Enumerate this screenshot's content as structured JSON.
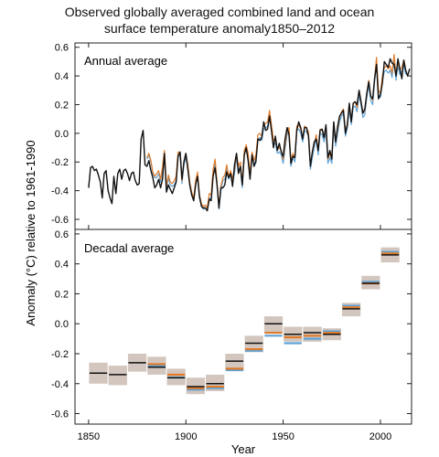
{
  "title_line1": "Observed globally averaged combined land and ocean",
  "title_line2": "surface temperature anomaly1850–2012",
  "colors": {
    "black": "#111111",
    "orange": "#e07b2a",
    "blue": "#5fa3d6",
    "band": "#cbbcb3"
  },
  "chart_data": [
    {
      "type": "line",
      "panel_label": "Annual average",
      "xlabel": "Year",
      "ylabel": "Anomaly (°C) relative to 1961-1990",
      "xlim": [
        1843,
        2016
      ],
      "ylim": [
        -0.67,
        0.63
      ],
      "yticks": [
        -0.6,
        -0.4,
        -0.2,
        0.0,
        0.2,
        0.4,
        0.6
      ],
      "ytick_labels": [
        "-0.6",
        "-0.4",
        "-0.2",
        "0.0",
        "0.2",
        "0.4",
        "0.6"
      ],
      "series": [
        {
          "key": "black",
          "start_year": 1850,
          "values": [
            -0.38,
            -0.24,
            -0.23,
            -0.26,
            -0.25,
            -0.29,
            -0.34,
            -0.45,
            -0.28,
            -0.26,
            -0.4,
            -0.45,
            -0.49,
            -0.3,
            -0.42,
            -0.28,
            -0.25,
            -0.32,
            -0.26,
            -0.25,
            -0.28,
            -0.33,
            -0.28,
            -0.27,
            -0.33,
            -0.36,
            -0.35,
            -0.04,
            0.02,
            -0.22,
            -0.23,
            -0.19,
            -0.26,
            -0.31,
            -0.38,
            -0.36,
            -0.32,
            -0.38,
            -0.32,
            -0.14,
            -0.41,
            -0.36,
            -0.39,
            -0.42,
            -0.38,
            -0.34,
            -0.16,
            -0.13,
            -0.32,
            -0.2,
            -0.14,
            -0.25,
            -0.36,
            -0.43,
            -0.47,
            -0.36,
            -0.3,
            -0.44,
            -0.51,
            -0.52,
            -0.52,
            -0.54,
            -0.46,
            -0.47,
            -0.3,
            -0.24,
            -0.36,
            -0.52,
            -0.38,
            -0.38,
            -0.36,
            -0.27,
            -0.31,
            -0.28,
            -0.37,
            -0.22,
            -0.14,
            -0.28,
            -0.23,
            -0.36,
            -0.15,
            -0.1,
            -0.19,
            -0.32,
            -0.15,
            -0.23,
            -0.2,
            -0.04,
            -0.05,
            -0.03,
            0.08,
            0.02,
            0.03,
            0.12,
            0.02,
            -0.1,
            -0.02,
            -0.12,
            -0.07,
            -0.13,
            -0.16,
            -0.04,
            0.04,
            -0.01,
            -0.21,
            -0.16,
            -0.17,
            0.02,
            0.08,
            0.04,
            -0.04,
            0.04,
            0.04,
            -0.02,
            -0.23,
            -0.13,
            -0.06,
            -0.04,
            -0.12,
            0.02,
            0.03,
            -0.03,
            0.06,
            -0.17,
            -0.12,
            -0.18,
            0.08,
            -0.06,
            0.05,
            0.12,
            0.14,
            0.16,
            0.0,
            0.06,
            0.21,
            0.08,
            0.21,
            0.22,
            0.2,
            0.3,
            0.22,
            0.14,
            0.17,
            0.28,
            0.36,
            0.26,
            0.24,
            0.38,
            0.48,
            0.24,
            0.27,
            0.35,
            0.5,
            0.48,
            0.46,
            0.52,
            0.49,
            0.48,
            0.4,
            0.52,
            0.45,
            0.38,
            0.51,
            0.44,
            0.4,
            0.45
          ]
        },
        {
          "key": "orange",
          "start_year": 1880,
          "values": [
            -0.17,
            -0.14,
            -0.19,
            -0.27,
            -0.3,
            -0.28,
            -0.26,
            -0.32,
            -0.23,
            -0.12,
            -0.37,
            -0.29,
            -0.34,
            -0.35,
            -0.33,
            -0.3,
            -0.13,
            -0.13,
            -0.33,
            -0.2,
            -0.14,
            -0.22,
            -0.34,
            -0.41,
            -0.45,
            -0.33,
            -0.27,
            -0.43,
            -0.49,
            -0.51,
            -0.5,
            -0.52,
            -0.42,
            -0.43,
            -0.25,
            -0.18,
            -0.34,
            -0.51,
            -0.37,
            -0.31,
            -0.29,
            -0.22,
            -0.3,
            -0.26,
            -0.32,
            -0.25,
            -0.14,
            -0.23,
            -0.2,
            -0.35,
            -0.12,
            -0.08,
            -0.14,
            -0.28,
            -0.13,
            -0.19,
            -0.15,
            -0.01,
            0.0,
            -0.02,
            0.06,
            0.07,
            0.08,
            0.16,
            0.06,
            -0.05,
            -0.04,
            -0.11,
            -0.1,
            -0.12,
            -0.18,
            -0.08,
            0.02,
            0.04,
            -0.2,
            -0.14,
            -0.17,
            0.05,
            0.06,
            0.03,
            -0.03,
            0.05,
            0.04,
            0.01,
            -0.22,
            -0.14,
            -0.07,
            -0.01,
            -0.12,
            0.03,
            0.02,
            -0.03,
            0.05,
            -0.18,
            -0.14,
            -0.18,
            0.07,
            -0.06,
            0.03,
            0.11,
            0.15,
            0.17,
            0.01,
            0.07,
            0.2,
            0.09,
            0.21,
            0.22,
            0.18,
            0.3,
            0.23,
            0.14,
            0.16,
            0.28,
            0.37,
            0.26,
            0.23,
            0.39,
            0.53,
            0.3,
            0.28,
            0.4,
            0.46,
            0.47,
            0.45,
            0.47,
            0.42,
            0.55,
            0.4,
            0.5,
            0.44,
            0.46,
            0.51,
            0.44
          ]
        },
        {
          "key": "blue",
          "start_year": 1880,
          "values": [
            -0.18,
            -0.15,
            -0.2,
            -0.28,
            -0.31,
            -0.31,
            -0.28,
            -0.34,
            -0.25,
            -0.14,
            -0.39,
            -0.31,
            -0.36,
            -0.37,
            -0.36,
            -0.33,
            -0.16,
            -0.15,
            -0.35,
            -0.22,
            -0.17,
            -0.24,
            -0.36,
            -0.43,
            -0.47,
            -0.35,
            -0.3,
            -0.45,
            -0.51,
            -0.53,
            -0.52,
            -0.54,
            -0.45,
            -0.46,
            -0.28,
            -0.21,
            -0.36,
            -0.53,
            -0.4,
            -0.33,
            -0.32,
            -0.25,
            -0.32,
            -0.29,
            -0.35,
            -0.28,
            -0.17,
            -0.26,
            -0.23,
            -0.38,
            -0.15,
            -0.11,
            -0.17,
            -0.3,
            -0.15,
            -0.22,
            -0.18,
            -0.04,
            -0.03,
            -0.05,
            0.03,
            0.04,
            0.05,
            0.12,
            0.04,
            -0.08,
            -0.07,
            -0.14,
            -0.13,
            -0.15,
            -0.21,
            -0.11,
            -0.01,
            0.01,
            -0.23,
            -0.17,
            -0.2,
            0.02,
            0.03,
            0.0,
            -0.06,
            0.02,
            0.01,
            -0.02,
            -0.25,
            -0.17,
            -0.1,
            -0.04,
            -0.15,
            0.0,
            -0.01,
            -0.06,
            0.02,
            -0.21,
            -0.17,
            -0.21,
            0.04,
            -0.09,
            0.0,
            0.08,
            0.12,
            0.14,
            -0.02,
            0.04,
            0.17,
            0.06,
            0.18,
            0.19,
            0.15,
            0.27,
            0.2,
            0.11,
            0.13,
            0.25,
            0.34,
            0.23,
            0.2,
            0.36,
            0.5,
            0.27,
            0.25,
            0.37,
            0.43,
            0.44,
            0.42,
            0.44,
            0.39,
            0.52,
            0.37,
            0.47,
            0.41,
            0.43,
            0.48,
            0.41
          ]
        }
      ]
    },
    {
      "type": "bar",
      "panel_label": "Decadal average",
      "xlim": [
        1843,
        2016
      ],
      "ylim": [
        -0.67,
        0.63
      ],
      "xticks": [
        1850,
        1900,
        1950,
        2000
      ],
      "xtick_labels": [
        "1850",
        "1900",
        "1950",
        "2000"
      ],
      "yticks": [
        -0.6,
        -0.4,
        -0.2,
        0.0,
        0.2,
        0.4,
        0.6
      ],
      "ytick_labels": [
        "-0.6",
        "-0.4",
        "-0.2",
        "0.0",
        "0.2",
        "0.4",
        "0.6"
      ],
      "decades": [
        {
          "start": 1850,
          "black": -0.33,
          "band": [
            -0.4,
            -0.26
          ]
        },
        {
          "start": 1860,
          "black": -0.34,
          "band": [
            -0.41,
            -0.28
          ]
        },
        {
          "start": 1870,
          "black": -0.26,
          "band": [
            -0.32,
            -0.2
          ]
        },
        {
          "start": 1880,
          "black": -0.29,
          "orange": -0.27,
          "blue": -0.28,
          "band": [
            -0.34,
            -0.22
          ]
        },
        {
          "start": 1890,
          "black": -0.36,
          "orange": -0.34,
          "blue": -0.36,
          "band": [
            -0.41,
            -0.3
          ]
        },
        {
          "start": 1900,
          "black": -0.42,
          "orange": -0.43,
          "blue": -0.44,
          "band": [
            -0.47,
            -0.36
          ]
        },
        {
          "start": 1910,
          "black": -0.4,
          "orange": -0.42,
          "blue": -0.43,
          "band": [
            -0.45,
            -0.34
          ]
        },
        {
          "start": 1920,
          "black": -0.25,
          "orange": -0.3,
          "blue": -0.31,
          "band": [
            -0.31,
            -0.2
          ]
        },
        {
          "start": 1930,
          "black": -0.13,
          "orange": -0.17,
          "blue": -0.18,
          "band": [
            -0.19,
            -0.08
          ]
        },
        {
          "start": 1940,
          "black": 0.0,
          "orange": -0.06,
          "blue": -0.08,
          "band": [
            -0.06,
            0.05
          ]
        },
        {
          "start": 1950,
          "black": -0.07,
          "orange": -0.09,
          "blue": -0.13,
          "band": [
            -0.12,
            -0.02
          ]
        },
        {
          "start": 1960,
          "black": -0.06,
          "orange": -0.08,
          "blue": -0.1,
          "band": [
            -0.12,
            -0.02
          ]
        },
        {
          "start": 1970,
          "black": -0.07,
          "orange": -0.06,
          "blue": -0.05,
          "band": [
            -0.11,
            -0.03
          ]
        },
        {
          "start": 1980,
          "black": 0.1,
          "orange": 0.11,
          "blue": 0.12,
          "band": [
            0.05,
            0.14
          ]
        },
        {
          "start": 1990,
          "black": 0.27,
          "orange": 0.27,
          "blue": 0.28,
          "band": [
            0.23,
            0.32
          ]
        },
        {
          "start": 2000,
          "black": 0.46,
          "orange": 0.47,
          "blue": 0.48,
          "band": [
            0.41,
            0.51
          ]
        }
      ]
    }
  ]
}
